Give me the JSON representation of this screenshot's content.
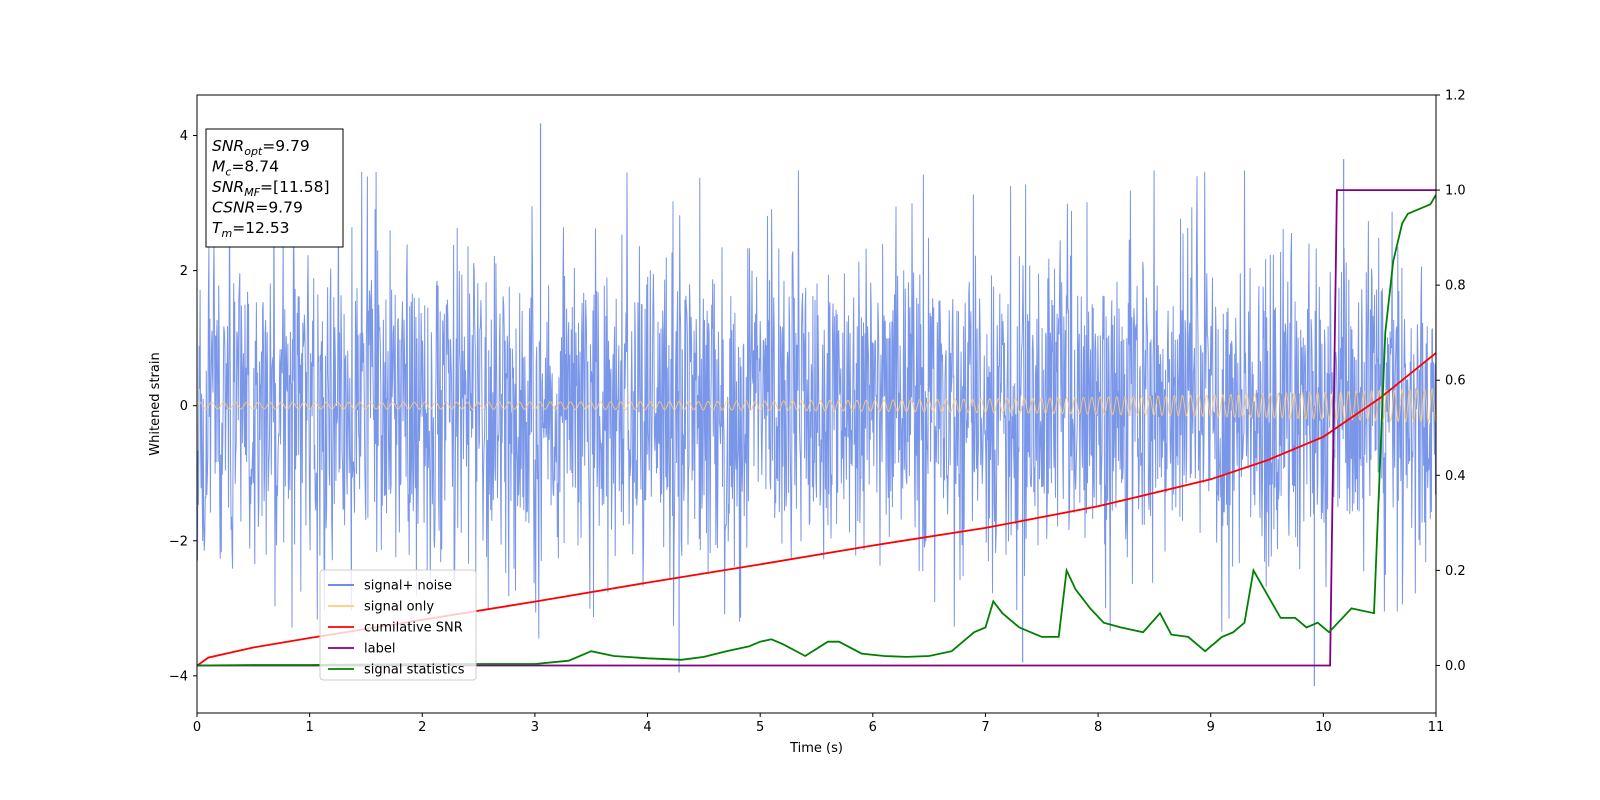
{
  "chart_data": {
    "type": "line",
    "xlabel": "Time (s)",
    "ylabel": "Whitened strain",
    "xlim": [
      0,
      11
    ],
    "ylim_left": [
      -4.55,
      4.6
    ],
    "ylim_right": [
      -0.1,
      1.2
    ],
    "x_ticks": [
      "0",
      "1",
      "2",
      "3",
      "4",
      "5",
      "6",
      "7",
      "8",
      "9",
      "10",
      "11"
    ],
    "y_left_ticks": [
      "−4",
      "−2",
      "0",
      "2",
      "4"
    ],
    "y_right_ticks": [
      "0.0",
      "0.2",
      "0.4",
      "0.6",
      "0.8",
      "1.0",
      "1.2"
    ],
    "info_box": [
      {
        "base": "SNR",
        "sub": "opt",
        "value": "=9.79"
      },
      {
        "base": "M",
        "sub": "c",
        "value": "=8.74"
      },
      {
        "base": "SNR",
        "sub": "MF",
        "value": "=[11.58]"
      },
      {
        "base": "CSNR",
        "sub": "",
        "value": "=9.79"
      },
      {
        "base": "T",
        "sub": "m",
        "value": "=12.53"
      }
    ],
    "legend": {
      "placement": "lower-left",
      "entries": [
        {
          "label": "signal+ noise",
          "color": "#5b7be4"
        },
        {
          "label": "signal only",
          "color": "#ffcc77"
        },
        {
          "label": "cumilative SNR",
          "color": "#ff0000"
        },
        {
          "label": "label",
          "color": "#800080"
        },
        {
          "label": "signal statistics",
          "color": "#008000"
        }
      ]
    },
    "series": [
      {
        "name": "signal+ noise",
        "axis": "left",
        "color": "#7a96e9",
        "description_values": {
          "typical_range": [
            -1.5,
            1.5
          ],
          "max_spike": 4.18,
          "min_spike": -4.15
        }
      },
      {
        "name": "signal only",
        "axis": "left",
        "color": "#ffcc77",
        "amplitude_start": 0.05,
        "amplitude_end": 0.25
      },
      {
        "name": "cumilative SNR",
        "axis": "left",
        "color": "#ff0000",
        "x": [
          0,
          0.1,
          0.5,
          1,
          2,
          3,
          4,
          5,
          6,
          7,
          8,
          9,
          9.5,
          10,
          10.5,
          11
        ],
        "y": [
          -3.85,
          -3.73,
          -3.58,
          -3.44,
          -3.17,
          -2.9,
          -2.62,
          -2.35,
          -2.07,
          -1.81,
          -1.49,
          -1.09,
          -0.81,
          -0.46,
          0.11,
          0.78
        ]
      },
      {
        "name": "label",
        "axis": "right",
        "color": "#800080",
        "x": [
          0,
          10.06,
          10.12,
          11
        ],
        "y": [
          0,
          0,
          1,
          1
        ]
      },
      {
        "name": "signal statistics",
        "axis": "right",
        "color": "#008000",
        "x": [
          0,
          0.5,
          1,
          1.5,
          2,
          2.5,
          3,
          3.3,
          3.5,
          3.7,
          4,
          4.3,
          4.5,
          4.7,
          4.9,
          5.0,
          5.1,
          5.2,
          5.4,
          5.6,
          5.7,
          5.9,
          6.1,
          6.3,
          6.5,
          6.7,
          6.8,
          6.9,
          7.0,
          7.07,
          7.15,
          7.3,
          7.5,
          7.65,
          7.72,
          7.8,
          7.93,
          8.05,
          8.2,
          8.4,
          8.55,
          8.65,
          8.8,
          8.95,
          9.1,
          9.2,
          9.3,
          9.38,
          9.5,
          9.62,
          9.75,
          9.85,
          9.95,
          10.05,
          10.25,
          10.45,
          10.55,
          10.62,
          10.7,
          10.75,
          10.85,
          10.95,
          11.0
        ],
        "y": [
          0.0,
          0.001,
          0.001,
          0.002,
          0.003,
          0.003,
          0.003,
          0.01,
          0.03,
          0.02,
          0.015,
          0.012,
          0.018,
          0.03,
          0.04,
          0.05,
          0.055,
          0.045,
          0.02,
          0.05,
          0.05,
          0.025,
          0.02,
          0.018,
          0.02,
          0.03,
          0.05,
          0.07,
          0.08,
          0.135,
          0.11,
          0.08,
          0.06,
          0.06,
          0.2,
          0.16,
          0.12,
          0.09,
          0.08,
          0.07,
          0.11,
          0.065,
          0.06,
          0.03,
          0.06,
          0.07,
          0.09,
          0.2,
          0.15,
          0.1,
          0.1,
          0.08,
          0.09,
          0.07,
          0.12,
          0.11,
          0.7,
          0.85,
          0.93,
          0.95,
          0.96,
          0.97,
          0.99
        ]
      }
    ]
  }
}
